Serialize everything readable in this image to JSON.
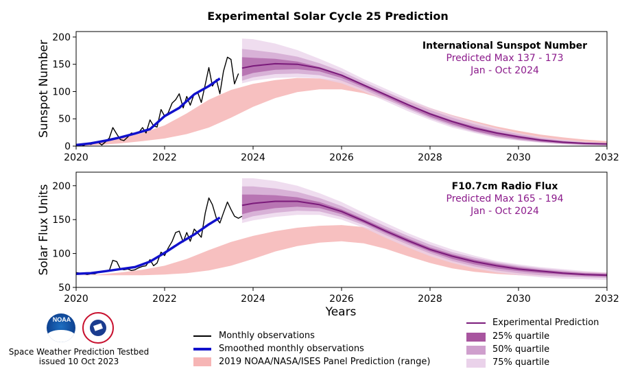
{
  "title": "Experimental Solar Cycle 25 Prediction",
  "colors": {
    "observations": "#000000",
    "smoothed": "#1111cc",
    "prediction": "#7a1a7a",
    "quartile25": "#a8559f",
    "quartile50": "#cf9fcd",
    "quartile75": "#ead2ea",
    "panel": "#f6b5b5",
    "annotation": "#8b1a8b"
  },
  "chart_data": [
    {
      "type": "line",
      "ylabel": "Sunspot Number",
      "xlim": [
        2020,
        2032
      ],
      "ylim": [
        0,
        210
      ],
      "yticks": [
        0,
        50,
        100,
        150,
        200
      ],
      "xticks": [
        "2020",
        "2022",
        "2024",
        "2026",
        "2028",
        "2030",
        "2032"
      ],
      "annotation": {
        "title": "International Sunspot Number",
        "line1": "Predicted Max 137 - 173",
        "line2": "Jan - Oct 2024"
      },
      "grid": false,
      "series": [
        {
          "name": "Monthly observations",
          "x": [
            2020.0,
            2020.08,
            2020.17,
            2020.25,
            2020.33,
            2020.42,
            2020.5,
            2020.58,
            2020.67,
            2020.75,
            2020.83,
            2020.92,
            2021.0,
            2021.08,
            2021.17,
            2021.25,
            2021.33,
            2021.42,
            2021.5,
            2021.58,
            2021.67,
            2021.75,
            2021.83,
            2021.92,
            2022.0,
            2022.08,
            2022.17,
            2022.25,
            2022.33,
            2022.42,
            2022.5,
            2022.58,
            2022.67,
            2022.75,
            2022.83,
            2022.92,
            2023.0,
            2023.08,
            2023.17,
            2023.25,
            2023.33,
            2023.42,
            2023.5,
            2023.58,
            2023.67
          ],
          "y": [
            2,
            3,
            1,
            5,
            3,
            6,
            7,
            2,
            8,
            15,
            34,
            22,
            12,
            10,
            17,
            24,
            22,
            25,
            34,
            24,
            48,
            37,
            35,
            67,
            55,
            61,
            79,
            85,
            96,
            70,
            91,
            75,
            96,
            98,
            80,
            113,
            144,
            110,
            122,
            96,
            137,
            163,
            159,
            114,
            133
          ]
        },
        {
          "name": "Smoothed monthly observations",
          "x": [
            2020.0,
            2020.33,
            2020.67,
            2021.0,
            2021.33,
            2021.67,
            2022.0,
            2022.33,
            2022.67,
            2023.0,
            2023.25
          ],
          "y": [
            2,
            5,
            10,
            16,
            23,
            31,
            55,
            70,
            95,
            110,
            124
          ]
        },
        {
          "name": "Experimental Prediction",
          "x": [
            2023.75,
            2024.0,
            2024.5,
            2025.0,
            2025.5,
            2026.0,
            2026.5,
            2027.0,
            2027.5,
            2028.0,
            2028.5,
            2029.0,
            2029.5,
            2030.0,
            2030.5,
            2031.0,
            2031.5,
            2032.0
          ],
          "y": [
            143,
            147,
            151,
            150,
            143,
            130,
            112,
            94,
            76,
            59,
            45,
            33,
            24,
            17,
            11,
            7,
            5,
            4
          ]
        },
        {
          "name": "25% quartile",
          "x": [
            2023.75,
            2024.0,
            2024.5,
            2025.0,
            2025.5,
            2026.0,
            2026.5,
            2027.0,
            2027.5,
            2028.0,
            2028.5,
            2029.0,
            2029.5,
            2030.0,
            2030.5,
            2031.0,
            2031.5,
            2032.0
          ],
          "upper": [
            163,
            162,
            160,
            155,
            145,
            131,
            113,
            95,
            77,
            61,
            47,
            36,
            26,
            19,
            13,
            9,
            6,
            4
          ],
          "lower": [
            128,
            134,
            140,
            141,
            137,
            125,
            108,
            90,
            71,
            54,
            40,
            28,
            19,
            13,
            8,
            5,
            3,
            2
          ]
        },
        {
          "name": "50% quartile",
          "x": [
            2023.75,
            2024.0,
            2024.5,
            2025.0,
            2025.5,
            2026.0,
            2026.5,
            2027.0,
            2027.5,
            2028.0,
            2028.5,
            2029.0,
            2029.5,
            2030.0,
            2030.5,
            2031.0,
            2031.5,
            2032.0
          ],
          "upper": [
            178,
            176,
            171,
            164,
            152,
            137,
            118,
            100,
            82,
            66,
            52,
            40,
            30,
            22,
            15,
            10,
            7,
            5
          ],
          "lower": [
            120,
            126,
            132,
            133,
            130,
            120,
            104,
            86,
            68,
            51,
            37,
            26,
            17,
            11,
            7,
            4,
            2,
            1
          ]
        },
        {
          "name": "75% quartile",
          "x": [
            2023.75,
            2024.0,
            2024.5,
            2025.0,
            2025.5,
            2026.0,
            2026.5,
            2027.0,
            2027.5,
            2028.0,
            2028.5,
            2029.0,
            2029.5,
            2030.0,
            2030.5,
            2031.0,
            2031.5,
            2032.0
          ],
          "upper": [
            197,
            196,
            188,
            176,
            160,
            143,
            123,
            105,
            87,
            70,
            56,
            44,
            33,
            24,
            17,
            12,
            8,
            6
          ],
          "lower": [
            115,
            120,
            125,
            126,
            124,
            115,
            100,
            82,
            64,
            48,
            34,
            24,
            15,
            10,
            6,
            3,
            1,
            1
          ]
        },
        {
          "name": "2019 NOAA/NASA/ISES Panel Prediction (range)",
          "x": [
            2020.0,
            2020.5,
            2021.0,
            2021.5,
            2022.0,
            2022.5,
            2023.0,
            2023.5,
            2024.0,
            2024.5,
            2025.0,
            2025.5,
            2026.0,
            2026.5,
            2027.0,
            2027.5,
            2028.0,
            2028.5,
            2029.0,
            2029.5,
            2030.0,
            2030.5,
            2031.0,
            2031.5,
            2032.0
          ],
          "upper": [
            2,
            7,
            14,
            24,
            38,
            60,
            85,
            103,
            114,
            121,
            125,
            124,
            120,
            111,
            98,
            84,
            70,
            57,
            46,
            36,
            28,
            21,
            16,
            12,
            9
          ],
          "lower": [
            0,
            2,
            5,
            9,
            14,
            22,
            34,
            52,
            72,
            88,
            99,
            104,
            104,
            97,
            85,
            71,
            57,
            44,
            33,
            24,
            17,
            12,
            8,
            5,
            3
          ]
        }
      ]
    },
    {
      "type": "line",
      "ylabel": "Solar Flux Units",
      "xlabel": "Years",
      "xlim": [
        2020,
        2032
      ],
      "ylim": [
        50,
        220
      ],
      "yticks": [
        50,
        100,
        150,
        200
      ],
      "xticks": [
        "2020",
        "2022",
        "2024",
        "2026",
        "2028",
        "2030",
        "2032"
      ],
      "annotation": {
        "title": "F10.7cm Radio Flux",
        "line1": "Predicted Max 165 - 194",
        "line2": "Jan - Oct 2024"
      },
      "grid": false,
      "series": [
        {
          "name": "Monthly observations",
          "x": [
            2020.0,
            2020.08,
            2020.17,
            2020.25,
            2020.33,
            2020.42,
            2020.5,
            2020.58,
            2020.67,
            2020.75,
            2020.83,
            2020.92,
            2021.0,
            2021.08,
            2021.17,
            2021.25,
            2021.33,
            2021.42,
            2021.5,
            2021.58,
            2021.67,
            2021.75,
            2021.83,
            2021.92,
            2022.0,
            2022.08,
            2022.17,
            2022.25,
            2022.33,
            2022.42,
            2022.5,
            2022.58,
            2022.67,
            2022.75,
            2022.83,
            2022.92,
            2023.0,
            2023.08,
            2023.17,
            2023.25,
            2023.33,
            2023.42,
            2023.5,
            2023.58,
            2023.67,
            2023.75
          ],
          "y": [
            72,
            71,
            70,
            69,
            70,
            70,
            72,
            73,
            74,
            75,
            90,
            88,
            77,
            76,
            77,
            75,
            76,
            79,
            81,
            82,
            91,
            82,
            86,
            102,
            97,
            108,
            118,
            131,
            133,
            117,
            131,
            118,
            136,
            130,
            124,
            160,
            182,
            172,
            152,
            145,
            160,
            176,
            165,
            155,
            152,
            155
          ]
        },
        {
          "name": "Smoothed monthly observations",
          "x": [
            2020.0,
            2020.33,
            2020.67,
            2021.0,
            2021.33,
            2021.67,
            2022.0,
            2022.33,
            2022.67,
            2023.0,
            2023.25
          ],
          "y": [
            70,
            71,
            74,
            77,
            80,
            88,
            101,
            115,
            128,
            143,
            153
          ]
        },
        {
          "name": "Experimental Prediction",
          "x": [
            2023.75,
            2024.0,
            2024.5,
            2025.0,
            2025.5,
            2026.0,
            2026.5,
            2027.0,
            2027.5,
            2028.0,
            2028.5,
            2029.0,
            2029.5,
            2030.0,
            2030.5,
            2031.0,
            2031.5,
            2032.0
          ],
          "y": [
            171,
            174,
            177,
            177,
            172,
            162,
            148,
            133,
            119,
            106,
            96,
            88,
            82,
            77,
            74,
            71,
            69,
            68
          ]
        },
        {
          "name": "25% quartile",
          "x": [
            2023.75,
            2024.0,
            2024.5,
            2025.0,
            2025.5,
            2026.0,
            2026.5,
            2027.0,
            2027.5,
            2028.0,
            2028.5,
            2029.0,
            2029.5,
            2030.0,
            2030.5,
            2031.0,
            2031.5,
            2032.0
          ],
          "upper": [
            187,
            187,
            186,
            183,
            176,
            165,
            151,
            136,
            122,
            109,
            99,
            91,
            85,
            80,
            76,
            73,
            71,
            70
          ],
          "lower": [
            158,
            162,
            167,
            169,
            167,
            158,
            145,
            130,
            116,
            103,
            92,
            84,
            78,
            74,
            71,
            69,
            67,
            66
          ]
        },
        {
          "name": "50% quartile",
          "x": [
            2023.75,
            2024.0,
            2024.5,
            2025.0,
            2025.5,
            2026.0,
            2026.5,
            2027.0,
            2027.5,
            2028.0,
            2028.5,
            2029.0,
            2029.5,
            2030.0,
            2030.5,
            2031.0,
            2031.5,
            2032.0
          ],
          "upper": [
            199,
            199,
            196,
            191,
            182,
            170,
            155,
            140,
            126,
            113,
            102,
            94,
            87,
            82,
            78,
            75,
            72,
            71
          ],
          "lower": [
            150,
            155,
            160,
            163,
            162,
            154,
            142,
            127,
            113,
            100,
            89,
            81,
            75,
            71,
            68,
            66,
            65,
            64
          ]
        },
        {
          "name": "75% quartile",
          "x": [
            2023.75,
            2024.0,
            2024.5,
            2025.0,
            2025.5,
            2026.0,
            2026.5,
            2027.0,
            2027.5,
            2028.0,
            2028.5,
            2029.0,
            2029.5,
            2030.0,
            2030.5,
            2031.0,
            2031.5,
            2032.0
          ],
          "upper": [
            211,
            211,
            207,
            200,
            189,
            176,
            160,
            145,
            130,
            117,
            106,
            97,
            89,
            84,
            80,
            77,
            74,
            72
          ],
          "lower": [
            145,
            149,
            154,
            157,
            157,
            150,
            138,
            123,
            109,
            96,
            86,
            78,
            72,
            68,
            65,
            63,
            62,
            61
          ]
        },
        {
          "name": "2019 NOAA/NASA/ISES Panel Prediction (range)",
          "x": [
            2020.0,
            2020.5,
            2021.0,
            2021.5,
            2022.0,
            2022.5,
            2023.0,
            2023.5,
            2024.0,
            2024.5,
            2025.0,
            2025.5,
            2026.0,
            2026.5,
            2027.0,
            2027.5,
            2028.0,
            2028.5,
            2029.0,
            2029.5,
            2030.0,
            2030.5,
            2031.0,
            2031.5,
            2032.0
          ],
          "upper": [
            68,
            69,
            72,
            76,
            82,
            92,
            105,
            117,
            126,
            133,
            138,
            141,
            142,
            139,
            131,
            120,
            108,
            98,
            90,
            84,
            79,
            76,
            74,
            73,
            72
          ],
          "lower": [
            68,
            68,
            68,
            68,
            69,
            71,
            75,
            82,
            92,
            103,
            111,
            116,
            118,
            115,
            107,
            96,
            86,
            78,
            73,
            70,
            68,
            67,
            66,
            66,
            66
          ]
        }
      ]
    }
  ],
  "legend_left": {
    "monthly": "Monthly observations",
    "smoothed": "Smoothed monthly observations",
    "panel": "2019 NOAA/NASA/ISES Panel Prediction (range)"
  },
  "legend_right": {
    "prediction": "Experimental Prediction",
    "q25": "25% quartile",
    "q50": "50% quartile",
    "q75": "75% quartile"
  },
  "footer": {
    "org": "Space Weather Prediction Testbed",
    "issued": "issued 10 Oct 2023",
    "noaa_logo_text": "NOAA"
  }
}
